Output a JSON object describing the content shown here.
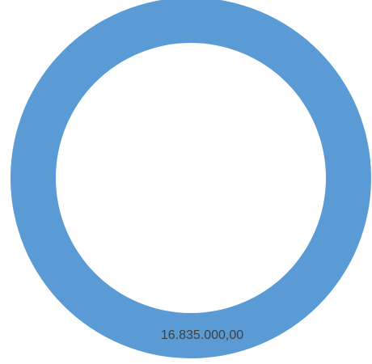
{
  "chart_data": {
    "type": "donut",
    "categories": [
      null
    ],
    "values": [
      16835000
    ],
    "value_labels": [
      "16.835.000,00"
    ],
    "colors": [
      "#5b9bd5"
    ]
  }
}
